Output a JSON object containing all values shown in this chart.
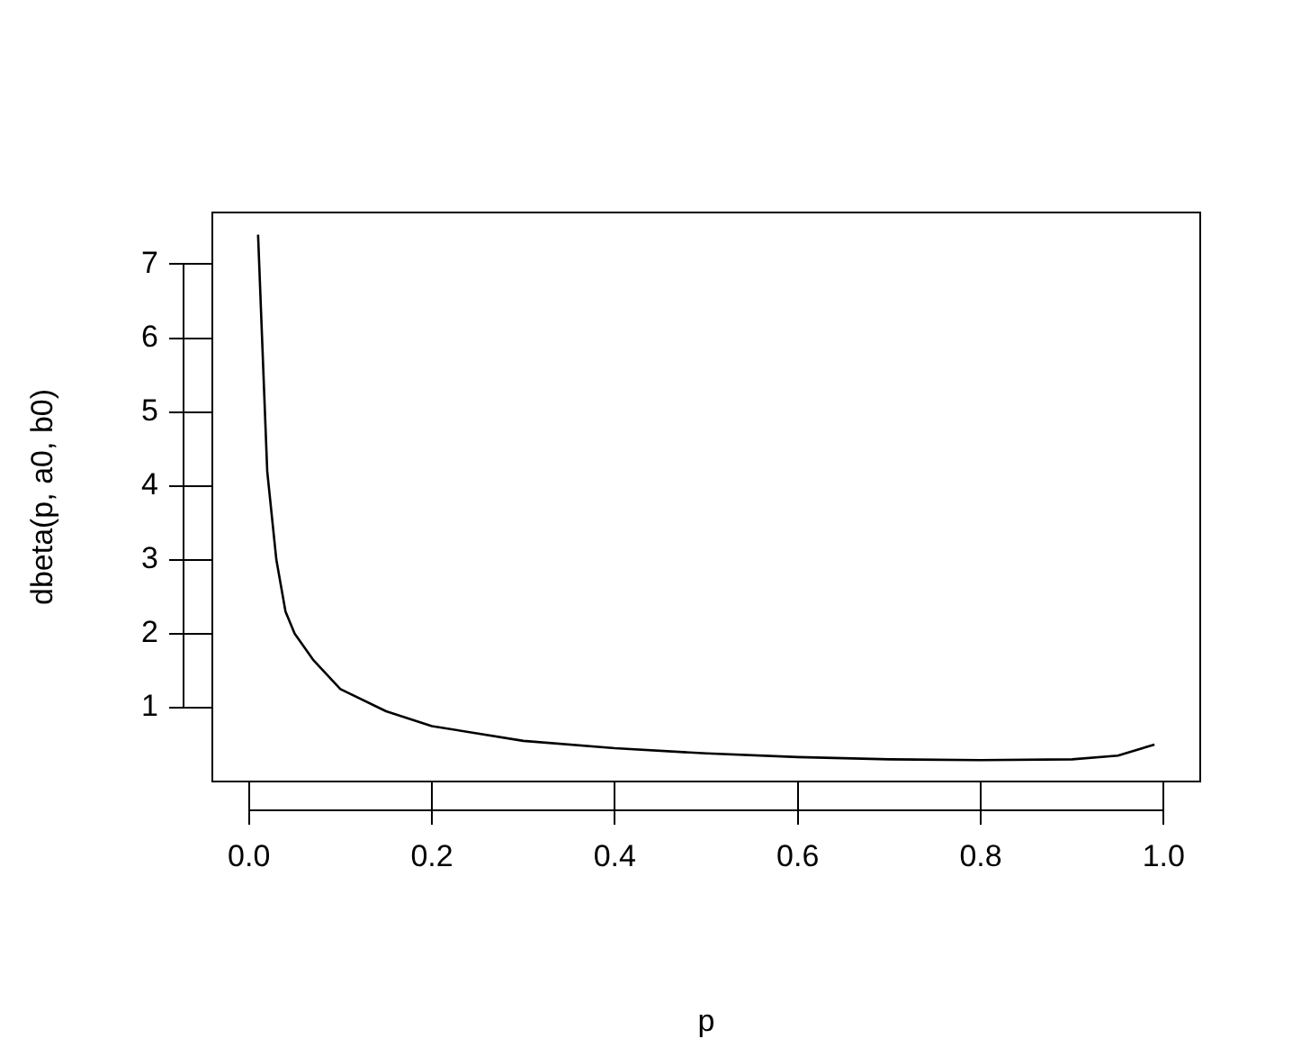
{
  "chart_data": {
    "type": "line",
    "xlabel": "p",
    "ylabel": "dbeta(p, a0, b0)",
    "x": [
      0.01,
      0.02,
      0.03,
      0.04,
      0.05,
      0.07,
      0.1,
      0.15,
      0.2,
      0.3,
      0.4,
      0.5,
      0.6,
      0.7,
      0.8,
      0.9,
      0.95,
      0.99
    ],
    "series": [
      {
        "color": "#000000",
        "values": [
          7.4,
          4.2,
          3.0,
          2.3,
          2.0,
          1.65,
          1.25,
          0.95,
          0.75,
          0.55,
          0.45,
          0.38,
          0.33,
          0.3,
          0.29,
          0.3,
          0.35,
          0.5
        ]
      }
    ],
    "xlim": [
      -0.04,
      1.04
    ],
    "ylim": [
      0,
      7.7
    ],
    "xticks": [
      {
        "value": 0,
        "label": "0.0"
      },
      {
        "value": 0.2,
        "label": "0.2"
      },
      {
        "value": 0.4,
        "label": "0.4"
      },
      {
        "value": 0.6,
        "label": "0.6"
      },
      {
        "value": 0.8,
        "label": "0.8"
      },
      {
        "value": 1,
        "label": "1.0"
      }
    ],
    "yticks": [
      1,
      2,
      3,
      4,
      5,
      6,
      7
    ],
    "grid": false,
    "legend": false,
    "marker": "none",
    "line_style": "solid"
  }
}
